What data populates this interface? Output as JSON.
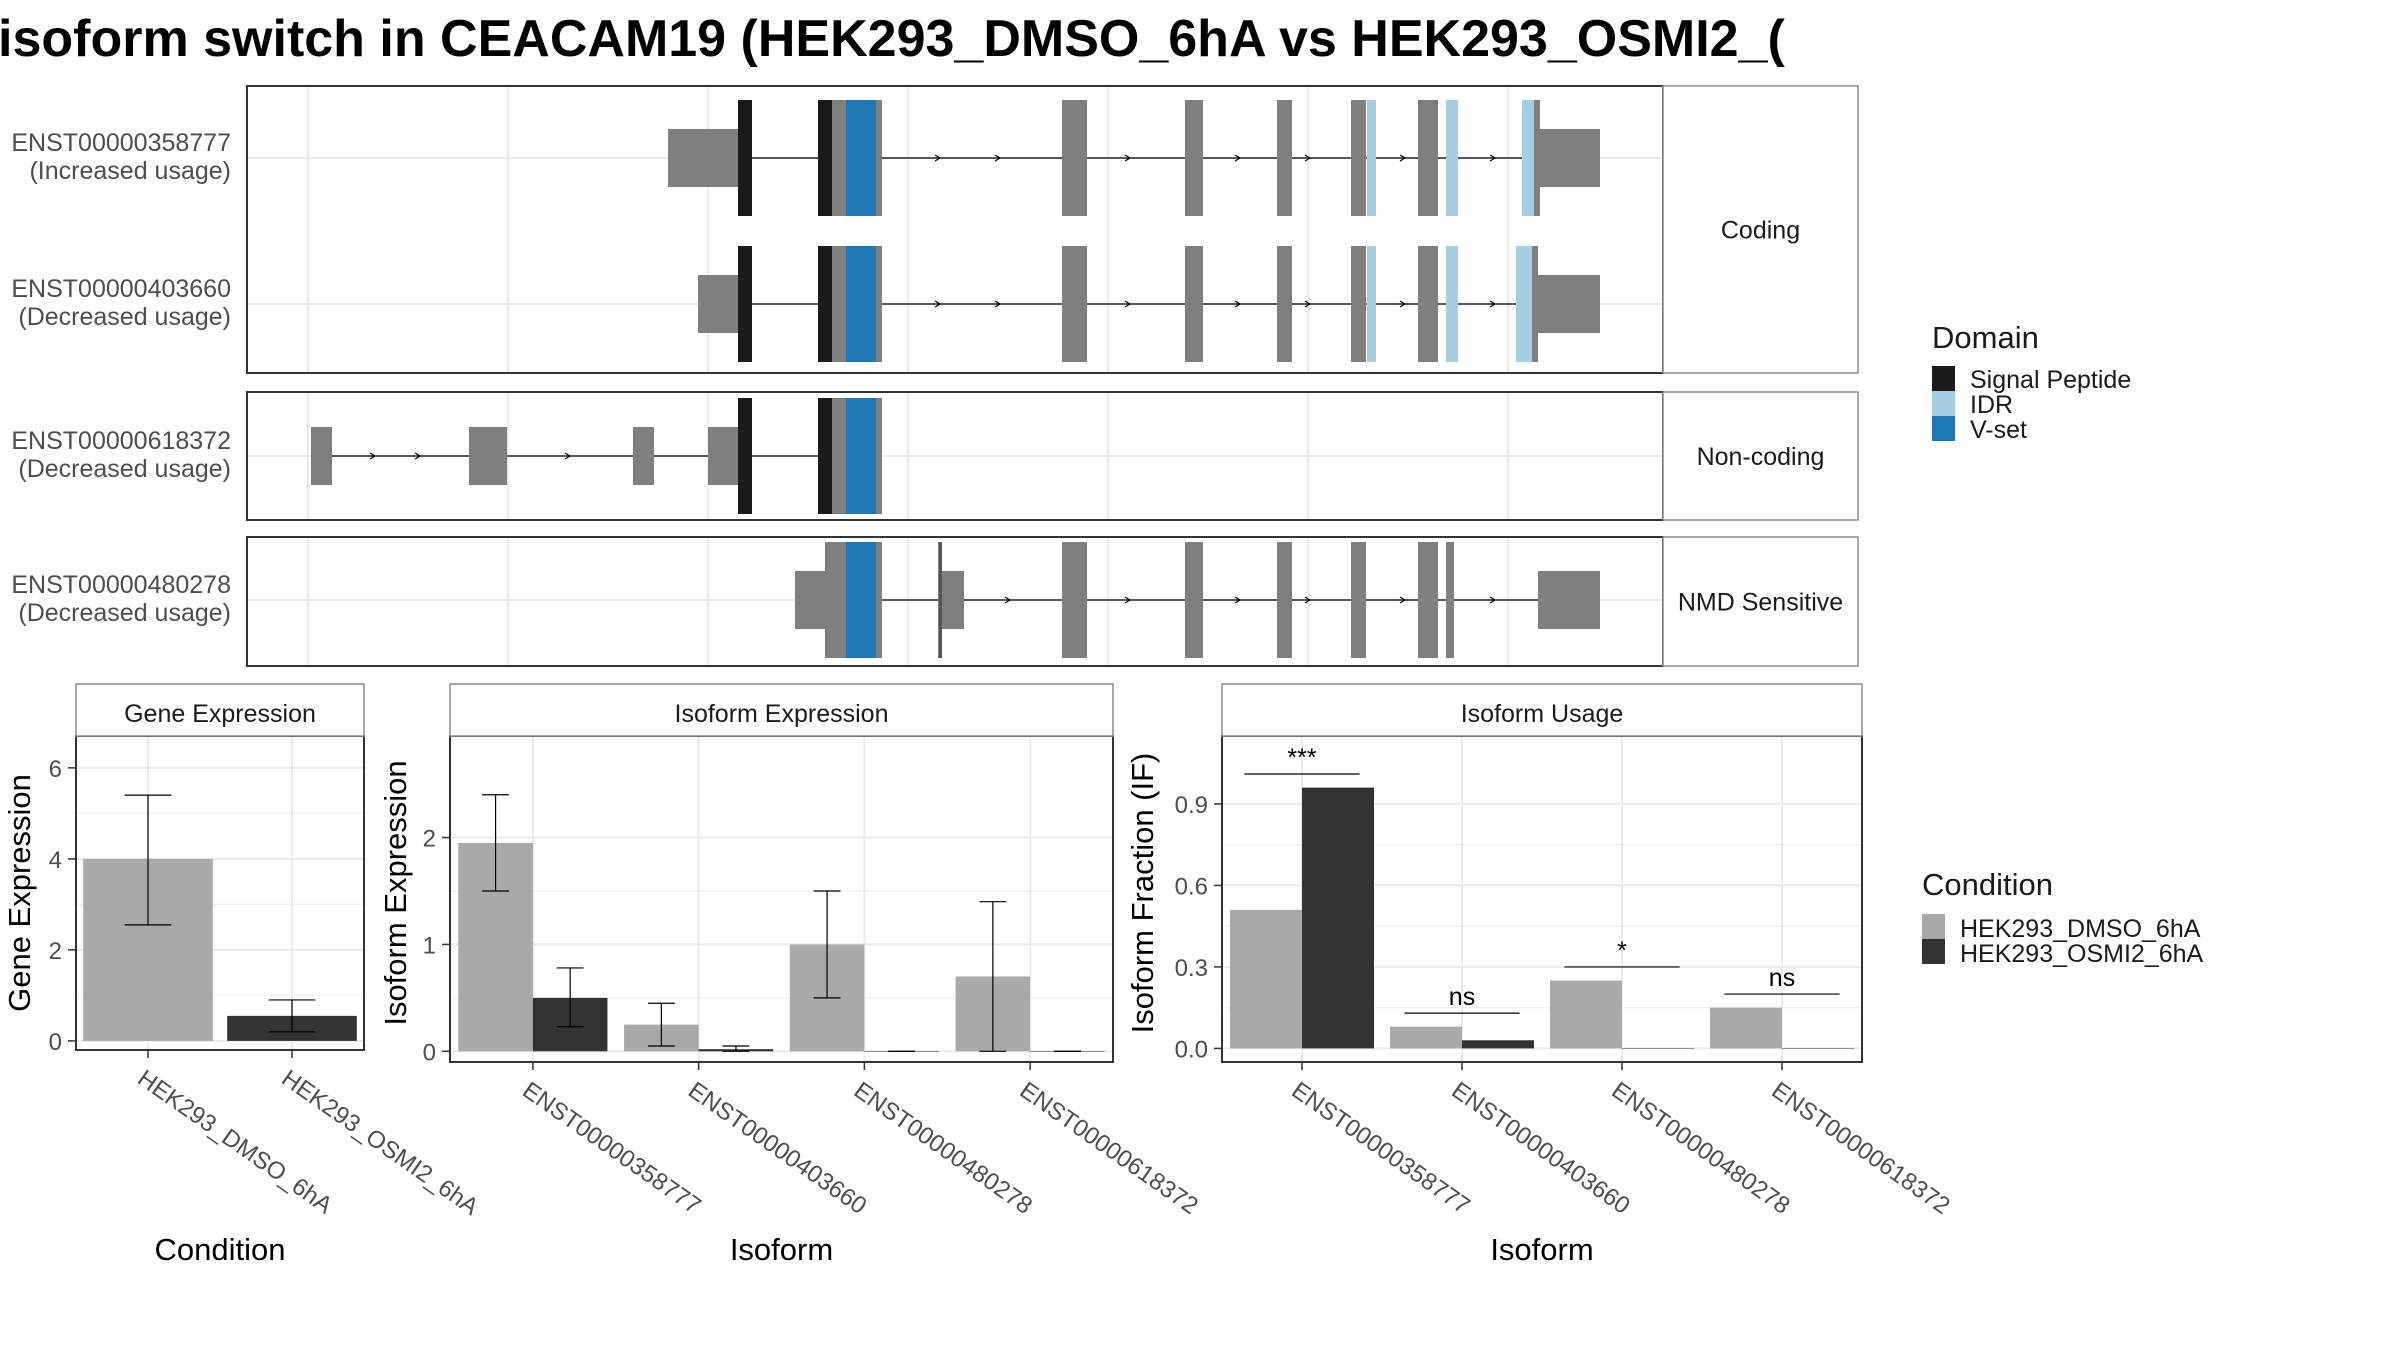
{
  "title": "isoform switch in CEACAM19 (HEK293_DMSO_6hA vs HEK293_OSMI2_(",
  "colors": {
    "signal_peptide": "#1a1a1a",
    "idr": "#a6cee3",
    "vset": "#1f78b4",
    "exon": "#7f7f7f",
    "dmso": "#a9a9a9",
    "osmi2": "#333333",
    "panel_border": "#333333",
    "strip_border": "#8c8c8c",
    "grid": "#ebebeb"
  },
  "structure": {
    "isoforms": [
      {
        "id": "ENST00000358777",
        "usage": "(Increased usage)",
        "group": "Coding"
      },
      {
        "id": "ENST00000403660",
        "usage": "(Decreased usage)",
        "group": "Coding"
      },
      {
        "id": "ENST00000618372",
        "usage": "(Decreased usage)",
        "group": "Non-coding"
      },
      {
        "id": "ENST00000480278",
        "usage": "(Decreased usage)",
        "group": "NMD Sensitive"
      }
    ],
    "groups": [
      "Coding",
      "Non-coding",
      "NMD Sensitive"
    ]
  },
  "domain_legend": {
    "title": "Domain",
    "items": [
      {
        "label": "Signal Peptide",
        "color": "#1a1a1a"
      },
      {
        "label": "IDR",
        "color": "#a6cee3"
      },
      {
        "label": "V-set",
        "color": "#1f78b4"
      }
    ]
  },
  "condition_legend": {
    "title": "Condition",
    "items": [
      {
        "label": "HEK293_DMSO_6hA",
        "color": "#a9a9a9"
      },
      {
        "label": "HEK293_OSMI2_6hA",
        "color": "#333333"
      }
    ]
  },
  "chart_data": [
    {
      "type": "bar",
      "title": "Gene Expression",
      "xlabel": "Condition",
      "ylabel": "Gene Expression",
      "categories": [
        "HEK293_DMSO_6hA",
        "HEK293_OSMI2_6hA"
      ],
      "values": [
        4.0,
        0.55
      ],
      "errors": [
        [
          2.55,
          5.4
        ],
        [
          0.2,
          0.9
        ]
      ],
      "yticks": [
        0,
        2,
        4,
        6
      ],
      "ylim": [
        -0.2,
        6.7
      ]
    },
    {
      "type": "bar",
      "title": "Isoform Expression",
      "xlabel": "Isoform",
      "ylabel": "Isoform Expression",
      "categories": [
        "ENST00000358777",
        "ENST00000403660",
        "ENST00000480278",
        "ENST00000618372"
      ],
      "series": [
        {
          "name": "HEK293_DMSO_6hA",
          "values": [
            1.95,
            0.25,
            1.0,
            0.7
          ],
          "errors": [
            [
              1.5,
              2.4
            ],
            [
              0.05,
              0.45
            ],
            [
              0.5,
              1.5
            ],
            [
              0.0,
              1.4
            ]
          ]
        },
        {
          "name": "HEK293_OSMI2_6hA",
          "values": [
            0.5,
            0.02,
            0.0,
            0.0
          ],
          "errors": [
            [
              0.23,
              0.78
            ],
            [
              0.0,
              0.05
            ],
            [
              0.0,
              0.0
            ],
            [
              0.0,
              0.0
            ]
          ]
        }
      ],
      "yticks": [
        0,
        1,
        2
      ],
      "ylim": [
        -0.1,
        2.95
      ]
    },
    {
      "type": "bar",
      "title": "Isoform Usage",
      "xlabel": "Isoform",
      "ylabel": "Isoform Fraction (IF)",
      "categories": [
        "ENST00000358777",
        "ENST00000403660",
        "ENST00000480278",
        "ENST00000618372"
      ],
      "series": [
        {
          "name": "HEK293_DMSO_6hA",
          "values": [
            0.51,
            0.08,
            0.25,
            0.15
          ]
        },
        {
          "name": "HEK293_OSMI2_6hA",
          "values": [
            0.96,
            0.03,
            0.0,
            0.0
          ]
        }
      ],
      "significance": [
        "***",
        "ns",
        "*",
        "ns"
      ],
      "yticks": [
        "0.0",
        "0.3",
        "0.6",
        "0.9"
      ],
      "ylim": [
        -0.05,
        1.15
      ]
    }
  ]
}
